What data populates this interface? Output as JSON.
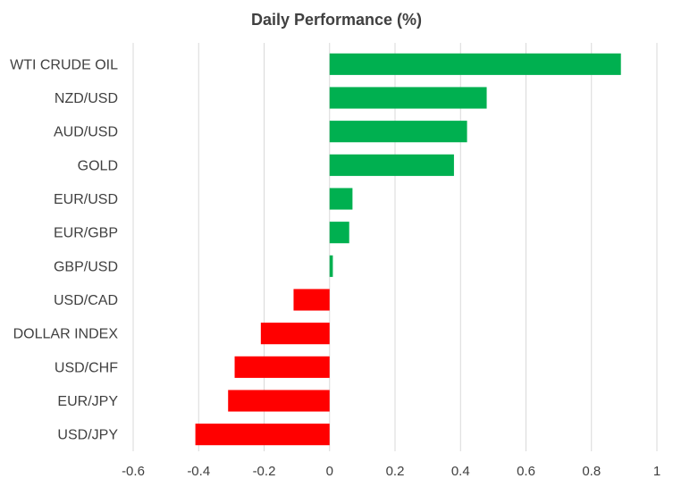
{
  "chart_data": {
    "type": "bar",
    "orientation": "horizontal",
    "title": "Daily Performance  (%)",
    "xlabel": "",
    "ylabel": "",
    "xlim": [
      -0.6,
      1
    ],
    "x_ticks": [
      "-0.6",
      "-0.4",
      "-0.2",
      "0",
      "0.2",
      "0.4",
      "0.6",
      "0.8",
      "1"
    ],
    "grid": true,
    "legend": "none",
    "positive_color": "#00b050",
    "negative_color": "#ff0000",
    "categories": [
      "WTI CRUDE OIL",
      "NZD/USD",
      "AUD/USD",
      "GOLD",
      "EUR/USD",
      "EUR/GBP",
      "GBP/USD",
      "USD/CAD",
      "DOLLAR INDEX",
      "USD/CHF",
      "EUR/JPY",
      "USD/JPY"
    ],
    "values": [
      0.89,
      0.48,
      0.42,
      0.38,
      0.07,
      0.06,
      0.01,
      -0.11,
      -0.21,
      -0.29,
      -0.31,
      -0.41
    ]
  }
}
